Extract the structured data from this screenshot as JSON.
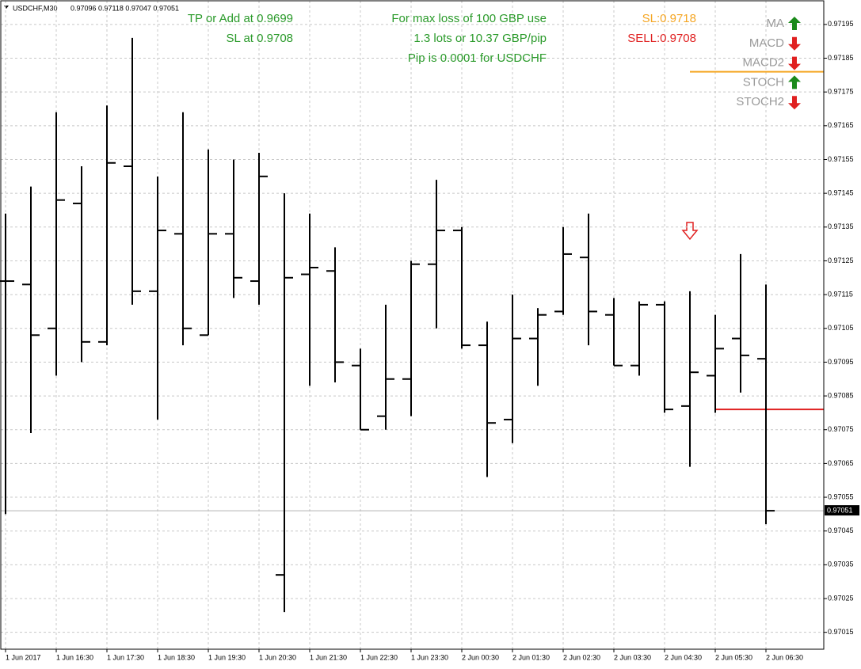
{
  "chart_data": {
    "type": "ohlc",
    "title": "USDCHF,M30",
    "quote": "0.97096 0.97118 0.97047 0.97051",
    "categories": [
      "1 Jun 2017",
      null,
      "1 Jun 16:30",
      null,
      "1 Jun 17:30",
      null,
      "1 Jun 18:30",
      null,
      "1 Jun 19:30",
      null,
      "1 Jun 20:30",
      null,
      "1 Jun 21:30",
      null,
      "1 Jun 22:30",
      null,
      "1 Jun 23:30",
      null,
      "2 Jun 00:30",
      null,
      "2 Jun 01:30",
      null,
      "2 Jun 02:30",
      null,
      "2 Jun 03:30",
      null,
      "2 Jun 04:30",
      null,
      "2 Jun 05:30",
      null,
      "2 Jun 06:30"
    ],
    "open": [
      0.97119,
      0.97118,
      0.97105,
      0.97142,
      0.97101,
      0.97153,
      0.97116,
      0.97133,
      0.97103,
      0.97133,
      0.97119,
      0.97032,
      0.97121,
      0.97122,
      0.97094,
      0.97079,
      0.9709,
      0.97124,
      0.97134,
      0.971,
      0.97078,
      0.97102,
      0.9711,
      0.97126,
      0.97109,
      0.97094,
      0.97112,
      0.97082,
      0.97091,
      0.97102,
      0.97096
    ],
    "high": [
      0.97139,
      0.97147,
      0.97169,
      0.97153,
      0.97171,
      0.97191,
      0.9715,
      0.97169,
      0.97158,
      0.97155,
      0.97157,
      0.97145,
      0.97139,
      0.97129,
      0.97099,
      0.97112,
      0.97125,
      0.97149,
      0.97135,
      0.97107,
      0.97115,
      0.97111,
      0.97135,
      0.97139,
      0.97114,
      0.97113,
      0.97113,
      0.97116,
      0.97109,
      0.97127,
      0.97118
    ],
    "low": [
      0.9705,
      0.97074,
      0.97091,
      0.97095,
      0.971,
      0.97112,
      0.97078,
      0.971,
      0.97103,
      0.97114,
      0.97112,
      0.97021,
      0.97088,
      0.97089,
      0.97075,
      0.97075,
      0.97079,
      0.97105,
      0.97099,
      0.97061,
      0.97071,
      0.97088,
      0.97109,
      0.971,
      0.97094,
      0.97091,
      0.9708,
      0.97064,
      0.9708,
      0.97086,
      0.97047
    ],
    "close": [
      0.97119,
      0.97103,
      0.97143,
      0.97101,
      0.97154,
      0.97116,
      0.97134,
      0.97105,
      0.97133,
      0.9712,
      0.9715,
      0.9712,
      0.97123,
      0.97095,
      0.97075,
      0.9709,
      0.97124,
      0.97134,
      0.971,
      0.97077,
      0.97102,
      0.97109,
      0.97127,
      0.9711,
      0.97094,
      0.97112,
      0.97081,
      0.97092,
      0.97099,
      0.97097,
      0.97051
    ],
    "color": "#000000",
    "ylim": [
      0.9701,
      0.97202
    ],
    "yticks": [
      0.97195,
      0.97185,
      0.97175,
      0.97165,
      0.97155,
      0.97145,
      0.97135,
      0.97125,
      0.97115,
      0.97105,
      0.97095,
      0.97085,
      0.97075,
      0.97065,
      0.97055,
      0.97045,
      0.97035,
      0.97025,
      0.97015
    ],
    "grid": true,
    "current_price": 0.97051,
    "hlines": [
      {
        "value": 0.97181,
        "color": "#f5a623"
      },
      {
        "value": 0.97081,
        "color": "#e02020"
      }
    ],
    "annotations": [
      {
        "text": "TP or Add at 0.9699",
        "color": "#2a9a2a"
      },
      {
        "text": "SL at 0.9708",
        "color": "#2a9a2a"
      },
      {
        "text": "For max loss of 100 GBP use",
        "color": "#2a9a2a"
      },
      {
        "text": "1.3 lots or 10.37 GBP/pip",
        "color": "#2a9a2a"
      },
      {
        "text": "Pip is 0.0001 for USDCHF",
        "color": "#2a9a2a"
      },
      {
        "text": "SL:0.9718",
        "color": "#f5a623"
      },
      {
        "text": "SELL:0.9708",
        "color": "#e02020"
      }
    ],
    "indicators": [
      {
        "name": "MA",
        "signal": "up"
      },
      {
        "name": "MACD",
        "signal": "down"
      },
      {
        "name": "MACD2",
        "signal": "down"
      },
      {
        "name": "STOCH",
        "signal": "up"
      },
      {
        "name": "STOCH2",
        "signal": "down"
      }
    ]
  }
}
